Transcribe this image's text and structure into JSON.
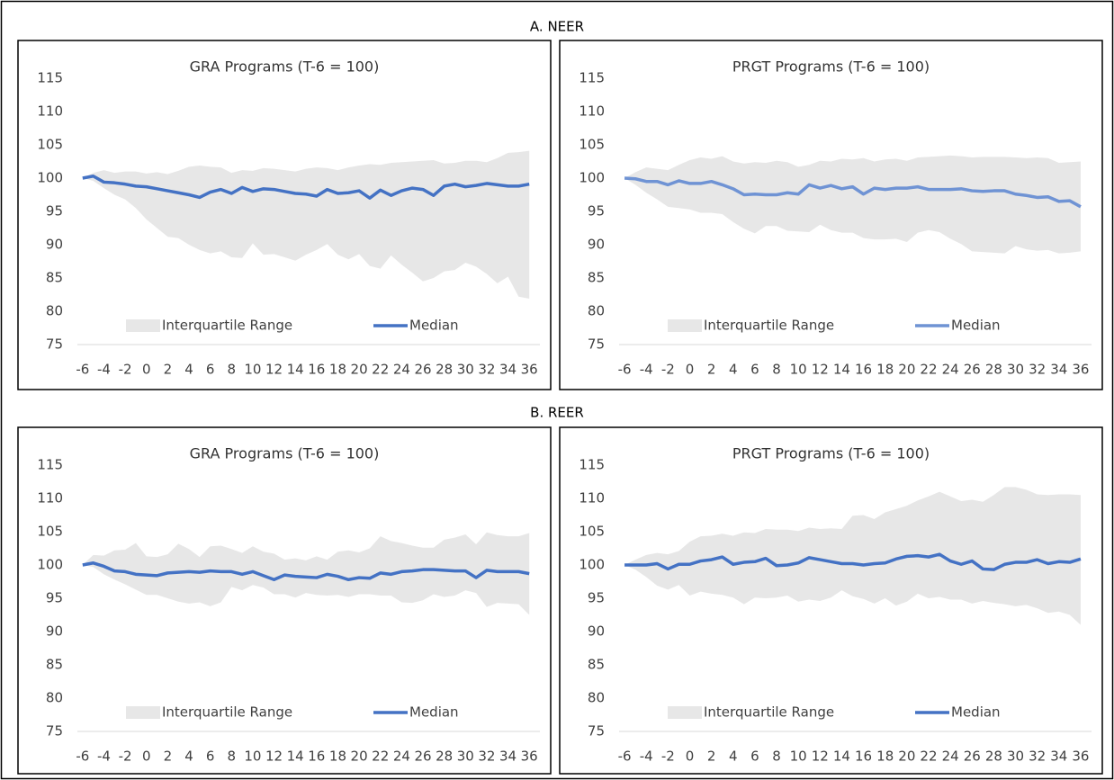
{
  "section_titles": [
    "A. NEER",
    "B. REER"
  ],
  "chart_data": [
    {
      "type": "line",
      "title": "GRA Programs (T-6 = 100)",
      "x": [
        -6,
        -5,
        -4,
        -3,
        -2,
        -1,
        0,
        1,
        2,
        3,
        4,
        5,
        6,
        7,
        8,
        9,
        10,
        11,
        12,
        13,
        14,
        15,
        16,
        17,
        18,
        19,
        20,
        21,
        22,
        23,
        24,
        25,
        26,
        27,
        28,
        29,
        30,
        31,
        32,
        33,
        34,
        35,
        36
      ],
      "xlim": [
        -7,
        37
      ],
      "xticks": [
        -6,
        -4,
        -2,
        0,
        2,
        4,
        6,
        8,
        10,
        12,
        14,
        16,
        18,
        20,
        22,
        24,
        26,
        28,
        30,
        32,
        34,
        36
      ],
      "ylim": [
        75,
        115
      ],
      "yticks": [
        75,
        80,
        85,
        90,
        95,
        100,
        105,
        110,
        115
      ],
      "grid": false,
      "legend": "bottom",
      "series": [
        {
          "name": "Interquartile Range",
          "color": "#e7e7e7",
          "upper": [
            100,
            100.8,
            101.2,
            100.8,
            101.0,
            101.0,
            100.7,
            100.9,
            100.6,
            101.1,
            101.7,
            101.9,
            101.7,
            101.6,
            100.8,
            101.2,
            101.1,
            101.5,
            101.4,
            101.2,
            101.0,
            101.4,
            101.6,
            101.5,
            101.2,
            101.6,
            101.9,
            102.1,
            102.0,
            102.3,
            102.4,
            102.5,
            102.6,
            102.7,
            102.2,
            102.3,
            102.6,
            102.6,
            102.4,
            103.0,
            103.8,
            103.9,
            104.1
          ],
          "lower": [
            100,
            99.6,
            98.5,
            97.5,
            96.8,
            95.5,
            93.8,
            92.5,
            91.2,
            91.0,
            90.0,
            89.2,
            88.7,
            89.0,
            88.1,
            88.0,
            90.2,
            88.5,
            88.6,
            88.1,
            87.6,
            88.5,
            89.2,
            90.1,
            88.5,
            87.8,
            88.6,
            86.8,
            86.4,
            88.4,
            87.0,
            85.8,
            84.5,
            85.0,
            86.0,
            86.2,
            87.3,
            86.7,
            85.6,
            84.2,
            85.2,
            82.2,
            81.9
          ]
        },
        {
          "name": "Median",
          "color": "#4472c4",
          "values": [
            100,
            100.3,
            99.4,
            99.3,
            99.1,
            98.8,
            98.7,
            98.4,
            98.1,
            97.8,
            97.5,
            97.1,
            97.9,
            98.3,
            97.7,
            98.6,
            98.0,
            98.4,
            98.3,
            98.0,
            97.7,
            97.6,
            97.3,
            98.3,
            97.7,
            97.8,
            98.1,
            97.0,
            98.2,
            97.4,
            98.1,
            98.5,
            98.3,
            97.4,
            98.8,
            99.1,
            98.7,
            98.9,
            99.2,
            99.0,
            98.8,
            98.8,
            99.1
          ]
        }
      ]
    },
    {
      "type": "line",
      "title": "PRGT Programs (T-6 = 100)",
      "x": [
        -6,
        -5,
        -4,
        -3,
        -2,
        -1,
        0,
        1,
        2,
        3,
        4,
        5,
        6,
        7,
        8,
        9,
        10,
        11,
        12,
        13,
        14,
        15,
        16,
        17,
        18,
        19,
        20,
        21,
        22,
        23,
        24,
        25,
        26,
        27,
        28,
        29,
        30,
        31,
        32,
        33,
        34,
        35,
        36
      ],
      "xlim": [
        -7,
        37
      ],
      "xticks": [
        -6,
        -4,
        -2,
        0,
        2,
        4,
        6,
        8,
        10,
        12,
        14,
        16,
        18,
        20,
        22,
        24,
        26,
        28,
        30,
        32,
        34,
        36
      ],
      "ylim": [
        75,
        115
      ],
      "yticks": [
        75,
        80,
        85,
        90,
        95,
        100,
        105,
        110,
        115
      ],
      "grid": false,
      "legend": "bottom",
      "series": [
        {
          "name": "Interquartile Range",
          "color": "#e7e7e7",
          "upper": [
            100,
            100.9,
            101.6,
            101.4,
            101.2,
            102.0,
            102.7,
            103.1,
            102.9,
            103.3,
            102.5,
            102.2,
            102.4,
            102.3,
            102.6,
            102.4,
            101.7,
            102.0,
            102.6,
            102.5,
            102.9,
            102.8,
            103.0,
            102.5,
            102.8,
            102.9,
            102.6,
            103.1,
            103.2,
            103.3,
            103.4,
            103.3,
            103.1,
            103.2,
            103.2,
            103.2,
            103.1,
            103.0,
            103.1,
            103.0,
            102.3,
            102.4,
            102.5
          ],
          "lower": [
            100,
            99.0,
            97.8,
            96.8,
            95.7,
            95.5,
            95.3,
            94.8,
            94.8,
            94.6,
            93.4,
            92.4,
            91.7,
            92.8,
            92.8,
            92.1,
            92.0,
            91.9,
            93.0,
            92.2,
            91.8,
            91.8,
            91.0,
            90.8,
            90.8,
            90.9,
            90.4,
            91.8,
            92.2,
            91.9,
            90.9,
            90.1,
            89.0,
            88.9,
            88.8,
            88.7,
            89.8,
            89.3,
            89.1,
            89.2,
            88.7,
            88.8,
            89.0
          ]
        },
        {
          "name": "Median",
          "color": "#6f93d4",
          "values": [
            100,
            99.9,
            99.5,
            99.5,
            99.0,
            99.6,
            99.2,
            99.2,
            99.5,
            99.0,
            98.4,
            97.5,
            97.6,
            97.5,
            97.5,
            97.8,
            97.6,
            99.0,
            98.5,
            98.9,
            98.4,
            98.7,
            97.6,
            98.5,
            98.3,
            98.5,
            98.5,
            98.7,
            98.3,
            98.3,
            98.3,
            98.4,
            98.1,
            98.0,
            98.1,
            98.1,
            97.6,
            97.4,
            97.1,
            97.2,
            96.5,
            96.6,
            95.7
          ]
        }
      ]
    },
    {
      "type": "line",
      "title": "GRA Programs (T-6 = 100)",
      "x": [
        -6,
        -5,
        -4,
        -3,
        -2,
        -1,
        0,
        1,
        2,
        3,
        4,
        5,
        6,
        7,
        8,
        9,
        10,
        11,
        12,
        13,
        14,
        15,
        16,
        17,
        18,
        19,
        20,
        21,
        22,
        23,
        24,
        25,
        26,
        27,
        28,
        29,
        30,
        31,
        32,
        33,
        34,
        35,
        36
      ],
      "xlim": [
        -7,
        37
      ],
      "xticks": [
        -6,
        -4,
        -2,
        0,
        2,
        4,
        6,
        8,
        10,
        12,
        14,
        16,
        18,
        20,
        22,
        24,
        26,
        28,
        30,
        32,
        34,
        36
      ],
      "ylim": [
        75,
        115
      ],
      "yticks": [
        75,
        80,
        85,
        90,
        95,
        100,
        105,
        110,
        115
      ],
      "grid": false,
      "legend": "bottom",
      "series": [
        {
          "name": "Interquartile Range",
          "color": "#e7e7e7",
          "upper": [
            100,
            101.5,
            101.4,
            102.2,
            102.3,
            103.3,
            101.3,
            101.2,
            101.6,
            103.2,
            102.4,
            101.2,
            102.8,
            102.9,
            102.4,
            101.8,
            102.8,
            102.0,
            101.7,
            100.8,
            101.0,
            100.7,
            101.3,
            100.8,
            102.0,
            102.2,
            101.9,
            102.5,
            104.3,
            103.6,
            103.3,
            102.9,
            102.6,
            102.6,
            103.8,
            104.1,
            104.6,
            103.1,
            104.9,
            104.5,
            104.3,
            104.3,
            104.8
          ],
          "lower": [
            100,
            99.7,
            98.6,
            97.8,
            97.1,
            96.3,
            95.5,
            95.5,
            95.0,
            94.5,
            94.2,
            94.4,
            93.8,
            94.4,
            96.7,
            96.2,
            97.0,
            96.6,
            95.6,
            95.6,
            95.1,
            95.8,
            95.5,
            95.4,
            95.5,
            95.2,
            95.6,
            95.6,
            95.4,
            95.4,
            94.4,
            94.3,
            94.7,
            95.6,
            95.2,
            95.4,
            96.2,
            95.8,
            93.7,
            94.3,
            94.2,
            94.1,
            92.5
          ]
        },
        {
          "name": "Median",
          "color": "#4472c4",
          "values": [
            100,
            100.3,
            99.8,
            99.1,
            99.0,
            98.6,
            98.5,
            98.4,
            98.8,
            98.9,
            99.0,
            98.9,
            99.1,
            99.0,
            99.0,
            98.6,
            99.0,
            98.4,
            97.8,
            98.5,
            98.3,
            98.2,
            98.1,
            98.6,
            98.3,
            97.8,
            98.1,
            98.0,
            98.8,
            98.6,
            99.0,
            99.1,
            99.3,
            99.3,
            99.2,
            99.1,
            99.1,
            98.1,
            99.2,
            99.0,
            99.0,
            99.0,
            98.7
          ]
        }
      ]
    },
    {
      "type": "line",
      "title": "PRGT Programs (T-6 = 100)",
      "x": [
        -6,
        -5,
        -4,
        -3,
        -2,
        -1,
        0,
        1,
        2,
        3,
        4,
        5,
        6,
        7,
        8,
        9,
        10,
        11,
        12,
        13,
        14,
        15,
        16,
        17,
        18,
        19,
        20,
        21,
        22,
        23,
        24,
        25,
        26,
        27,
        28,
        29,
        30,
        31,
        32,
        33,
        34,
        35,
        36
      ],
      "xlim": [
        -7,
        37
      ],
      "xticks": [
        -6,
        -4,
        -2,
        0,
        2,
        4,
        6,
        8,
        10,
        12,
        14,
        16,
        18,
        20,
        22,
        24,
        26,
        28,
        30,
        32,
        34,
        36
      ],
      "ylim": [
        75,
        115
      ],
      "yticks": [
        75,
        80,
        85,
        90,
        95,
        100,
        105,
        110,
        115
      ],
      "grid": false,
      "legend": "bottom",
      "series": [
        {
          "name": "Interquartile Range",
          "color": "#e7e7e7",
          "upper": [
            100,
            100.8,
            101.5,
            101.8,
            101.6,
            102.1,
            103.5,
            104.3,
            104.4,
            104.7,
            104.4,
            104.9,
            104.8,
            105.4,
            105.3,
            105.3,
            105.1,
            105.6,
            105.4,
            105.5,
            105.4,
            107.4,
            107.5,
            106.9,
            107.9,
            108.4,
            108.9,
            109.7,
            110.3,
            111.0,
            110.3,
            109.6,
            109.8,
            109.5,
            110.5,
            111.7,
            111.7,
            111.3,
            110.6,
            110.5,
            110.6,
            110.6,
            110.5
          ],
          "lower": [
            100,
            99.3,
            98.2,
            96.9,
            96.3,
            97.0,
            95.4,
            96.0,
            95.7,
            95.5,
            95.1,
            94.1,
            95.1,
            95.0,
            95.1,
            95.4,
            94.5,
            94.8,
            94.6,
            95.1,
            96.2,
            95.3,
            94.9,
            94.2,
            95.0,
            93.9,
            94.5,
            95.7,
            95.0,
            95.2,
            94.8,
            94.8,
            94.2,
            94.6,
            94.3,
            94.1,
            93.8,
            94.0,
            93.5,
            92.8,
            93.0,
            92.5,
            91.0
          ]
        },
        {
          "name": "Median",
          "color": "#4472c4",
          "values": [
            100,
            100,
            100,
            100.2,
            99.4,
            100.1,
            100.1,
            100.6,
            100.8,
            101.2,
            100.1,
            100.4,
            100.5,
            101.0,
            99.9,
            100.0,
            100.3,
            101.1,
            100.8,
            100.5,
            100.2,
            100.2,
            100.0,
            100.2,
            100.3,
            100.9,
            101.3,
            101.4,
            101.2,
            101.6,
            100.6,
            100.1,
            100.6,
            99.4,
            99.3,
            100.1,
            100.4,
            100.4,
            100.8,
            100.2,
            100.5,
            100.4,
            100.9
          ]
        }
      ]
    }
  ]
}
